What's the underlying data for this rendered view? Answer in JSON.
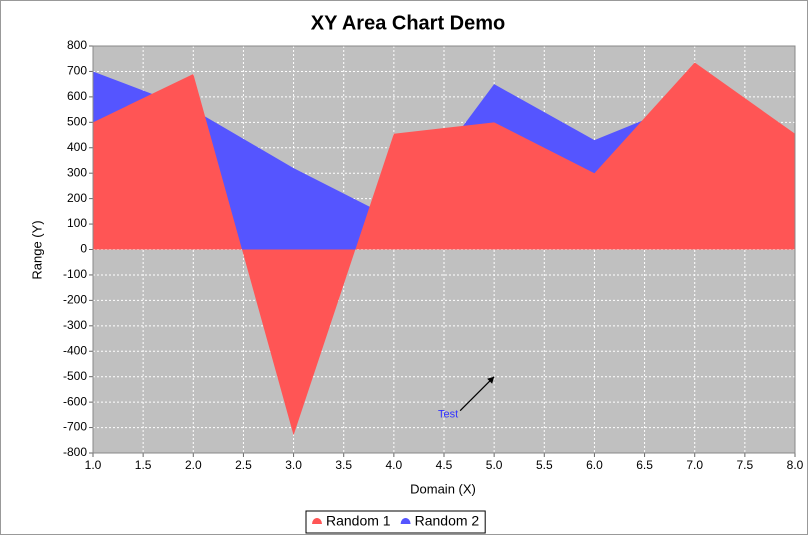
{
  "chart_data": {
    "type": "area",
    "title": "XY Area Chart Demo",
    "x_label": "Domain (X)",
    "y_label": "Range (Y)",
    "x": [
      1.0,
      2.0,
      3.0,
      4.0,
      5.0,
      6.0,
      7.0,
      8.0
    ],
    "series": [
      {
        "name": "Random 1",
        "color": "#ff5555",
        "values": [
          500,
          690,
          -730,
          455,
          500,
          300,
          735,
          455
        ]
      },
      {
        "name": "Random 2",
        "color": "#5555ff",
        "values": [
          700,
          550,
          320,
          120,
          650,
          430,
          590,
          400
        ]
      }
    ],
    "xlim": [
      1.0,
      8.0
    ],
    "xticks": [
      {
        "value": 1,
        "label": "1.0"
      },
      {
        "value": 1.5,
        "label": "1.5"
      },
      {
        "value": 2,
        "label": "2.0"
      },
      {
        "value": 2.5,
        "label": "2.5"
      },
      {
        "value": 3,
        "label": "3.0"
      },
      {
        "value": 3.5,
        "label": "3.5"
      },
      {
        "value": 4,
        "label": "4.0"
      },
      {
        "value": 4.5,
        "label": "4.5"
      },
      {
        "value": 5,
        "label": "5.0"
      },
      {
        "value": 5.5,
        "label": "5.5"
      },
      {
        "value": 6,
        "label": "6.0"
      },
      {
        "value": 6.5,
        "label": "6.5"
      },
      {
        "value": 7,
        "label": "7.0"
      },
      {
        "value": 7.5,
        "label": "7.5"
      },
      {
        "value": 8,
        "label": "8.0"
      }
    ],
    "ylim": [
      -800,
      800
    ],
    "yticks": [
      -800,
      -700,
      -600,
      -500,
      -400,
      -300,
      -200,
      -100,
      0,
      100,
      200,
      300,
      400,
      500,
      600,
      700,
      800
    ],
    "grid": true,
    "legend": "bottom",
    "annotations": [
      {
        "text": "Test",
        "x": 5.0,
        "y": -500
      }
    ]
  }
}
